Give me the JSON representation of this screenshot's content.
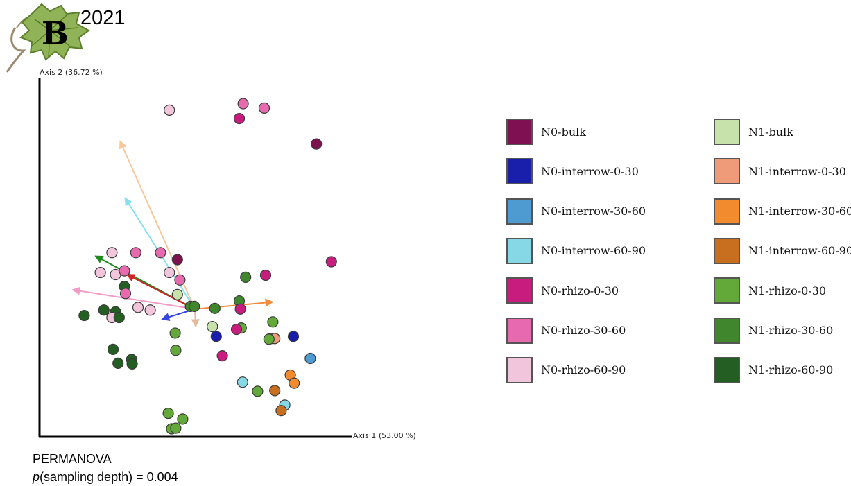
{
  "panel": {
    "letter": "B",
    "year": "2021"
  },
  "chart_data": {
    "type": "scatter",
    "xlabel": "Axis 1 (53.00 %)",
    "ylabel": "Axis 2 (36.72 %)",
    "grid": false,
    "legend_position": "right",
    "colors": {
      "N0-bulk": "#7f1150",
      "N0-interrow-0-30": "#1a1fab",
      "N0-interrow-30-60": "#4d9bd1",
      "N0-interrow-60-90": "#86d8e6",
      "N0-rhizo-0-30": "#c81d7e",
      "N0-rhizo-30-60": "#e86aae",
      "N0-rhizo-60-90": "#f1c6dd",
      "N1-bulk": "#c8e2ac",
      "N1-interrow-0-30": "#ef9b79",
      "N1-interrow-30-60": "#f28b2e",
      "N1-interrow-60-90": "#c86f1f",
      "N1-rhizo-0-30": "#62a93a",
      "N1-rhizo-30-60": "#3f862d",
      "N1-rhizo-60-90": "#245e22"
    },
    "legend_left": [
      "N0-bulk",
      "N0-interrow-0-30",
      "N0-interrow-30-60",
      "N0-interrow-60-90",
      "N0-rhizo-0-30",
      "N0-rhizo-30-60",
      "N0-rhizo-60-90"
    ],
    "legend_right": [
      "N1-bulk",
      "N1-interrow-0-30",
      "N1-interrow-30-60",
      "N1-interrow-60-90",
      "N1-rhizo-0-30",
      "N1-rhizo-30-60",
      "N1-rhizo-60-90"
    ],
    "xlim": [
      0,
      100
    ],
    "ylim": [
      0,
      100
    ],
    "points": [
      {
        "g": "N0-rhizo-60-90",
        "x": 38.3,
        "y": 94.5
      },
      {
        "g": "N0-rhizo-30-60",
        "x": 64.9,
        "y": 96.4
      },
      {
        "g": "N0-rhizo-30-60",
        "x": 72.5,
        "y": 95.1
      },
      {
        "g": "N0-rhizo-0-30",
        "x": 63.5,
        "y": 92.0
      },
      {
        "g": "N0-bulk",
        "x": 91.3,
        "y": 84.5
      },
      {
        "g": "N0-rhizo-0-30",
        "x": 96.7,
        "y": 49.7
      },
      {
        "g": "N0-rhizo-60-90",
        "x": 17.6,
        "y": 52.4
      },
      {
        "g": "N0-rhizo-30-60",
        "x": 26.2,
        "y": 52.4
      },
      {
        "g": "N0-rhizo-30-60",
        "x": 35.1,
        "y": 52.4
      },
      {
        "g": "N0-bulk",
        "x": 41.2,
        "y": 50.3
      },
      {
        "g": "N0-rhizo-60-90",
        "x": 13.4,
        "y": 46.5
      },
      {
        "g": "N0-rhizo-60-90",
        "x": 18.9,
        "y": 45.9
      },
      {
        "g": "N0-rhizo-30-60",
        "x": 22.1,
        "y": 47.0
      },
      {
        "g": "N0-rhizo-60-90",
        "x": 38.3,
        "y": 46.5
      },
      {
        "g": "N0-rhizo-30-60",
        "x": 42.1,
        "y": 44.3
      },
      {
        "g": "N1-rhizo-30-60",
        "x": 65.8,
        "y": 45.1
      },
      {
        "g": "N0-rhizo-0-30",
        "x": 73.0,
        "y": 45.7
      },
      {
        "g": "N1-rhizo-60-90",
        "x": 22.1,
        "y": 42.4
      },
      {
        "g": "N0-rhizo-30-60",
        "x": 22.5,
        "y": 40.3
      },
      {
        "g": "N1-bulk",
        "x": 41.2,
        "y": 40.0
      },
      {
        "g": "N1-rhizo-30-60",
        "x": 63.5,
        "y": 38.1
      },
      {
        "g": "N0-rhizo-60-90",
        "x": 27.0,
        "y": 36.2
      },
      {
        "g": "N0-rhizo-60-90",
        "x": 31.4,
        "y": 35.4
      },
      {
        "g": "N1-rhizo-30-60",
        "x": 45.9,
        "y": 36.5
      },
      {
        "g": "N1-rhizo-30-60",
        "x": 47.3,
        "y": 36.5
      },
      {
        "g": "N1-rhizo-30-60",
        "x": 54.7,
        "y": 35.9
      },
      {
        "g": "N0-rhizo-0-30",
        "x": 63.9,
        "y": 35.7
      },
      {
        "g": "N1-rhizo-60-90",
        "x": 7.6,
        "y": 33.8
      },
      {
        "g": "N1-rhizo-60-90",
        "x": 14.7,
        "y": 35.4
      },
      {
        "g": "N1-rhizo-60-90",
        "x": 18.9,
        "y": 34.9
      },
      {
        "g": "N0-rhizo-60-90",
        "x": 17.6,
        "y": 33.2
      },
      {
        "g": "N1-rhizo-60-90",
        "x": 20.2,
        "y": 33.2
      },
      {
        "g": "N1-rhizo-0-30",
        "x": 75.6,
        "y": 31.9
      },
      {
        "g": "N1-bulk",
        "x": 53.8,
        "y": 30.5
      },
      {
        "g": "N1-rhizo-0-30",
        "x": 64.2,
        "y": 30.1
      },
      {
        "g": "N0-rhizo-0-30",
        "x": 62.5,
        "y": 29.7
      },
      {
        "g": "N1-rhizo-0-30",
        "x": 40.4,
        "y": 28.6
      },
      {
        "g": "N0-interrow-0-30",
        "x": 55.2,
        "y": 27.6
      },
      {
        "g": "N0-interrow-0-30",
        "x": 83.0,
        "y": 27.6
      },
      {
        "g": "N1-interrow-0-30",
        "x": 75.0,
        "y": 27.0
      },
      {
        "g": "N1-interrow-0-30",
        "x": 76.3,
        "y": 27.0
      },
      {
        "g": "N1-rhizo-0-30",
        "x": 74.2,
        "y": 26.8
      },
      {
        "g": "N1-rhizo-60-90",
        "x": 18.0,
        "y": 23.8
      },
      {
        "g": "N1-rhizo-0-30",
        "x": 40.6,
        "y": 23.5
      },
      {
        "g": "N0-rhizo-0-30",
        "x": 57.4,
        "y": 21.9
      },
      {
        "g": "N1-rhizo-60-90",
        "x": 24.7,
        "y": 20.8
      },
      {
        "g": "N1-rhizo-60-90",
        "x": 19.8,
        "y": 19.7
      },
      {
        "g": "N1-rhizo-60-90",
        "x": 24.9,
        "y": 19.5
      },
      {
        "g": "N0-interrow-30-60",
        "x": 89.1,
        "y": 21.1
      },
      {
        "g": "N1-interrow-30-60",
        "x": 81.9,
        "y": 16.2
      },
      {
        "g": "N0-interrow-60-90",
        "x": 64.7,
        "y": 14.1
      },
      {
        "g": "N1-interrow-30-60",
        "x": 83.3,
        "y": 13.8
      },
      {
        "g": "N1-rhizo-0-30",
        "x": 70.1,
        "y": 11.4
      },
      {
        "g": "N1-interrow-60-90",
        "x": 76.3,
        "y": 11.6
      },
      {
        "g": "N0-interrow-60-90",
        "x": 79.9,
        "y": 7.3
      },
      {
        "g": "N1-interrow-60-90",
        "x": 78.6,
        "y": 5.7
      },
      {
        "g": "N1-rhizo-0-30",
        "x": 37.9,
        "y": 4.9
      },
      {
        "g": "N1-rhizo-0-30",
        "x": 43.1,
        "y": 3.2
      },
      {
        "g": "N1-rhizo-0-30",
        "x": 39.1,
        "y": 0.3
      },
      {
        "g": "N1-rhizo-0-30",
        "x": 40.6,
        "y": 0.5
      }
    ],
    "biplot_origin": {
      "x": 47.5,
      "y": 35.7
    },
    "arrows": [
      {
        "color": "#f8c89c",
        "x": 20.5,
        "y": 85.4
      },
      {
        "color": "#86e0ee",
        "x": 22.3,
        "y": 68.6
      },
      {
        "color": "#1e8a1e",
        "x": 11.6,
        "y": 51.4
      },
      {
        "color": "#d42222",
        "x": 23.0,
        "y": 45.9
      },
      {
        "color": "#f29bc9",
        "x": 3.4,
        "y": 41.4
      },
      {
        "color": "#f58a3a",
        "x": 75.6,
        "y": 37.8
      },
      {
        "color": "#3346e0",
        "x": 35.6,
        "y": 32.7
      },
      {
        "color": "#e5b89a",
        "x": 47.8,
        "y": 30.5
      }
    ]
  },
  "stats": {
    "title": "PERMANOVA",
    "line_italic": "p",
    "line_rest": "(sampling depth) = 0.004"
  }
}
